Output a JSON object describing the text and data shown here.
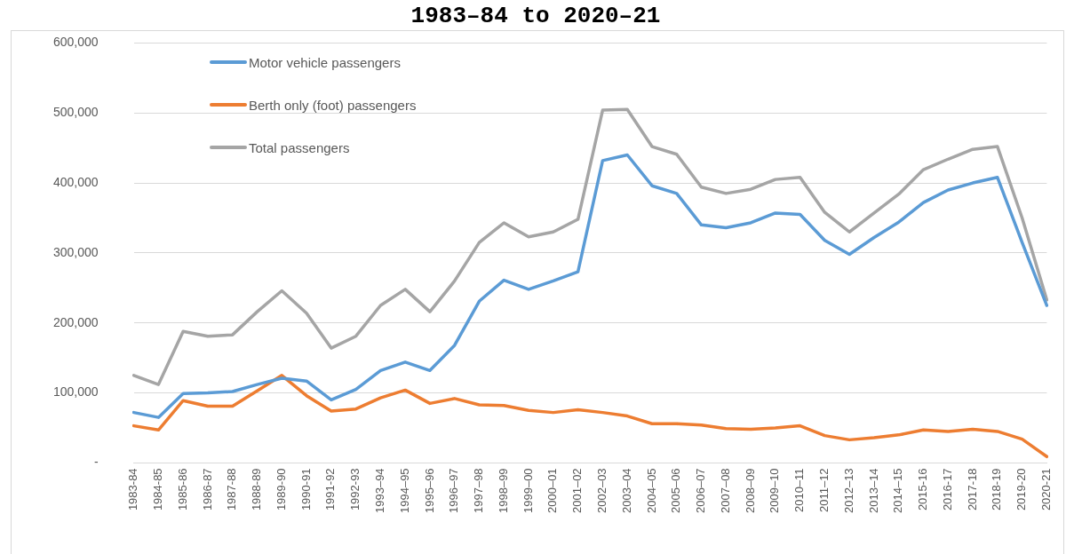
{
  "chart_data": {
    "type": "line",
    "title": "1983–84 to 2020–21",
    "categories": [
      "1983-84",
      "1984-85",
      "1985-86",
      "1986-87",
      "1987-88",
      "1988-89",
      "1989-90",
      "1990-91",
      "1991-92",
      "1992-93",
      "1993–94",
      "1994–95",
      "1995–96",
      "1996–97",
      "1997–98",
      "1998–99",
      "1999–00",
      "2000–01",
      "2001–02",
      "2002–03",
      "2003–04",
      "2004–05",
      "2005–06",
      "2006–07",
      "2007–08",
      "2008–09",
      "2009–10",
      "2010–11",
      "2011–12",
      "2012–13",
      "2013–14",
      "2014–15",
      "2015-16",
      "2016-17",
      "2017-18",
      "2018-19",
      "2019-20",
      "2020-21"
    ],
    "series": [
      {
        "name": "Motor vehicle passengers",
        "color": "#5b9bd5",
        "values": [
          72000,
          65000,
          99000,
          100000,
          102000,
          112000,
          121000,
          117000,
          90000,
          105000,
          132000,
          144000,
          132000,
          168000,
          231000,
          261000,
          248000,
          260000,
          273000,
          432000,
          440000,
          396000,
          385000,
          340000,
          336000,
          343000,
          357000,
          355000,
          318000,
          298000,
          322000,
          344000,
          372000,
          390000,
          400000,
          408000,
          315000,
          225000
        ]
      },
      {
        "name": "Berth only (foot) passengers",
        "color": "#ed7d31",
        "values": [
          53000,
          47000,
          89000,
          81000,
          81000,
          103000,
          125000,
          96000,
          74000,
          77000,
          93000,
          104000,
          85000,
          92000,
          83000,
          82000,
          75000,
          72000,
          76000,
          72000,
          67000,
          56000,
          56000,
          54000,
          49000,
          48000,
          50000,
          53000,
          39000,
          33000,
          36000,
          40000,
          47000,
          45000,
          48000,
          45000,
          34000,
          9000
        ]
      },
      {
        "name": "Total passengers",
        "color": "#a5a5a5",
        "values": [
          125000,
          112000,
          188000,
          181000,
          183000,
          216000,
          246000,
          214000,
          164000,
          181000,
          225000,
          248000,
          216000,
          260000,
          315000,
          343000,
          323000,
          330000,
          348000,
          504000,
          505000,
          452000,
          441000,
          394000,
          385000,
          391000,
          405000,
          408000,
          358000,
          330000,
          357000,
          384000,
          419000,
          434000,
          448000,
          452000,
          350000,
          233000
        ]
      }
    ],
    "ylim": [
      0,
      600000
    ],
    "yticks": [
      {
        "value": 0,
        "label": "-"
      },
      {
        "value": 100000,
        "label": "100,000"
      },
      {
        "value": 200000,
        "label": "200,000"
      },
      {
        "value": 300000,
        "label": "300,000"
      },
      {
        "value": 400000,
        "label": "400,000"
      },
      {
        "value": 500000,
        "label": "500,000"
      },
      {
        "value": 600000,
        "label": "600,000"
      }
    ],
    "grid": "y",
    "legend": "top left",
    "marker": "none",
    "line_style": "solid"
  }
}
